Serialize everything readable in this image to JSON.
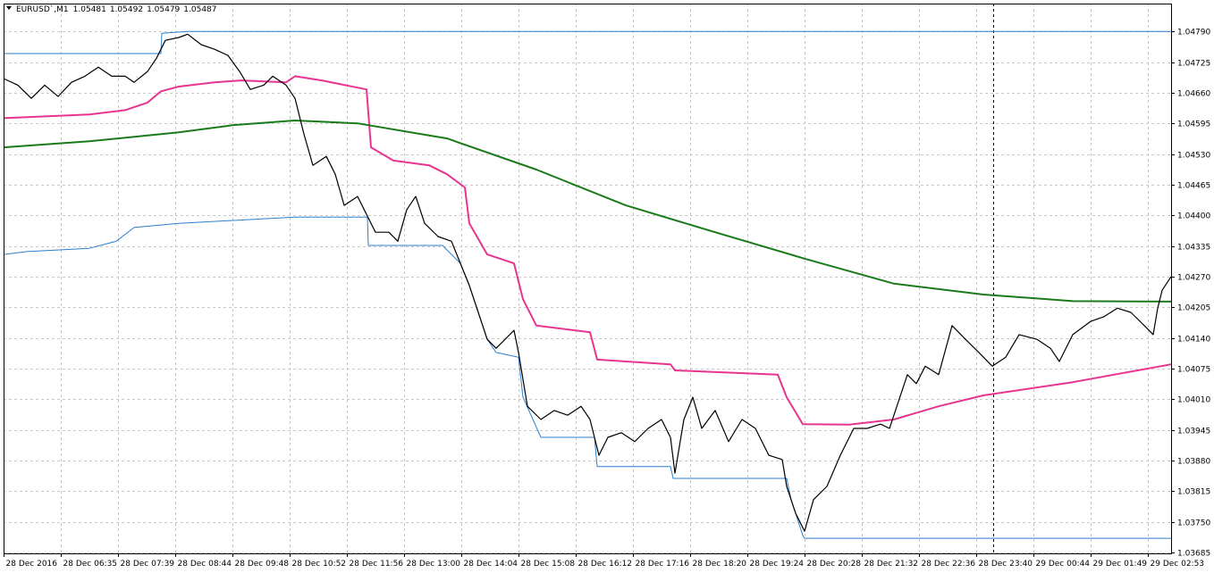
{
  "chart_data": {
    "type": "line",
    "title": "EURUSD`,M1",
    "ohlc": [
      1.05481,
      1.05492,
      1.05479,
      1.05487
    ],
    "xlim": [
      0,
      1306
    ],
    "xticks": [
      {
        "value": 0,
        "label": "28 Dec 2016"
      },
      {
        "value": 64,
        "label": "28 Dec 06:35"
      },
      {
        "value": 128,
        "label": "28 Dec 07:39"
      },
      {
        "value": 192,
        "label": "28 Dec 08:44"
      },
      {
        "value": 256,
        "label": "28 Dec 09:48"
      },
      {
        "value": 320,
        "label": "28 Dec 10:52"
      },
      {
        "value": 384,
        "label": "28 Dec 11:56"
      },
      {
        "value": 448,
        "label": "28 Dec 13:00"
      },
      {
        "value": 512,
        "label": "28 Dec 14:04"
      },
      {
        "value": 576,
        "label": "28 Dec 15:08"
      },
      {
        "value": 640,
        "label": "28 Dec 16:12"
      },
      {
        "value": 704,
        "label": "28 Dec 17:16"
      },
      {
        "value": 768,
        "label": "28 Dec 18:20"
      },
      {
        "value": 832,
        "label": "28 Dec 19:24"
      },
      {
        "value": 896,
        "label": "28 Dec 20:28"
      },
      {
        "value": 960,
        "label": "28 Dec 21:32"
      },
      {
        "value": 1024,
        "label": "28 Dec 22:36"
      },
      {
        "value": 1088,
        "label": "28 Dec 23:40"
      },
      {
        "value": 1152,
        "label": "29 Dec 00:44"
      },
      {
        "value": 1216,
        "label": "29 Dec 01:49"
      },
      {
        "value": 1280,
        "label": "29 Dec 02:53"
      }
    ],
    "ylim": [
      1.03683,
      1.04849
    ],
    "yticks": [
      {
        "value": 1.0479,
        "label": "1.04790"
      },
      1.04725,
      {
        "value": 1.0466,
        "label": "1.04660"
      },
      1.04595,
      {
        "value": 1.0453,
        "label": "1.04530"
      },
      1.04465,
      {
        "value": 1.044,
        "label": "1.04400"
      },
      1.04335,
      {
        "value": 1.0427,
        "label": "1.04270"
      },
      1.04205,
      {
        "value": 1.0414,
        "label": "1.04140"
      },
      1.04075,
      {
        "value": 1.0401,
        "label": "1.04010"
      },
      1.03945,
      {
        "value": 1.0388,
        "label": "1.03880"
      },
      1.03815,
      {
        "value": 1.0375,
        "label": "1.03750"
      },
      1.03685
    ],
    "grid": true,
    "series": [
      {
        "color": "#2b7fd0",
        "x": [
          0,
          176,
          177,
          206,
          1306
        ],
        "values": [
          1.04743,
          1.04743,
          1.04786,
          1.0479,
          1.0479
        ]
      },
      {
        "color": "#2b7fd0",
        "x": [
          0,
          26,
          96,
          126,
          146,
          196,
          326,
          407,
          408,
          491,
          501,
          511,
          521,
          531,
          541,
          551,
          576,
          581,
          601,
          661,
          664,
          746,
          749,
          876,
          881,
          894,
          896,
          1306
        ],
        "values": [
          1.04317,
          1.04323,
          1.0433,
          1.04345,
          1.04374,
          1.04383,
          1.04396,
          1.04396,
          1.04336,
          1.04336,
          1.04317,
          1.04298,
          1.04251,
          1.04194,
          1.04137,
          1.04109,
          1.04099,
          1.04014,
          1.03929,
          1.03929,
          1.03867,
          1.03867,
          1.03842,
          1.03842,
          1.03797,
          1.03721,
          1.03715,
          1.03715
        ]
      },
      {
        "color": "#e8348f",
        "x": [
          0,
          96,
          136,
          161,
          176,
          196,
          236,
          266,
          316,
          326,
          356,
          406,
          411,
          436,
          476,
          496,
          516,
          521,
          541,
          571,
          581,
          596,
          656,
          664,
          746,
          751,
          866,
          876,
          894,
          946,
          996,
          1046,
          1096,
          1196,
          1306
        ],
        "values": [
          1.04606,
          1.04614,
          1.04623,
          1.04639,
          1.04663,
          1.04673,
          1.04682,
          1.04686,
          1.04682,
          1.04695,
          1.04686,
          1.04667,
          1.04544,
          1.04516,
          1.04506,
          1.04487,
          1.04459,
          1.04383,
          1.04317,
          1.04298,
          1.04222,
          1.04166,
          1.04152,
          1.04094,
          1.04084,
          1.04071,
          1.04062,
          1.04014,
          1.03957,
          1.03956,
          1.03967,
          1.03995,
          1.04018,
          1.04046,
          1.04084
        ]
      },
      {
        "color": "#1a7a1a",
        "x": [
          0,
          96,
          196,
          256,
          326,
          396,
          496,
          596,
          696,
          796,
          896,
          996,
          1096,
          1196,
          1306
        ],
        "values": [
          1.04544,
          1.04557,
          1.04576,
          1.04591,
          1.04601,
          1.04595,
          1.04563,
          1.04497,
          1.04421,
          1.04364,
          1.04308,
          1.04255,
          1.04232,
          1.04218,
          1.04217
        ]
      },
      {
        "color": "#000000",
        "x": [
          0,
          16,
          31,
          46,
          61,
          76,
          91,
          106,
          121,
          136,
          146,
          161,
          171,
          181,
          196,
          206,
          221,
          236,
          251,
          264,
          276,
          291,
          301,
          316,
          326,
          336,
          346,
          361,
          371,
          381,
          396,
          406,
          416,
          431,
          441,
          451,
          461,
          471,
          486,
          501,
          511,
          521,
          531,
          541,
          551,
          561,
          571,
          576,
          586,
          601,
          616,
          631,
          646,
          656,
          666,
          676,
          691,
          706,
          721,
          736,
          746,
          751,
          761,
          771,
          781,
          796,
          811,
          826,
          841,
          856,
          871,
          876,
          886,
          896,
          906,
          921,
          936,
          951,
          966,
          981,
          991,
          1001,
          1011,
          1021,
          1031,
          1046,
          1061,
          1076,
          1091,
          1106,
          1121,
          1136,
          1156,
          1171,
          1181,
          1196,
          1216,
          1231,
          1246,
          1261,
          1276,
          1286,
          1291,
          1296,
          1306
        ],
        "values": [
          1.0469,
          1.04676,
          1.04648,
          1.04676,
          1.04652,
          1.04682,
          1.04695,
          1.04714,
          1.04695,
          1.04695,
          1.04682,
          1.04705,
          1.04733,
          1.04771,
          1.04777,
          1.04784,
          1.04762,
          1.04752,
          1.04739,
          1.04705,
          1.04667,
          1.04676,
          1.04695,
          1.04676,
          1.04648,
          1.04572,
          1.04506,
          1.04525,
          1.04487,
          1.04421,
          1.0444,
          1.04402,
          1.04364,
          1.04364,
          1.04345,
          1.04412,
          1.0444,
          1.04383,
          1.04355,
          1.04345,
          1.04298,
          1.04251,
          1.04194,
          1.04137,
          1.04118,
          1.04137,
          1.04156,
          1.04109,
          1.03995,
          1.03967,
          1.03986,
          1.03976,
          1.03995,
          1.03967,
          1.03891,
          1.03929,
          1.03939,
          1.0392,
          1.03948,
          1.03967,
          1.03929,
          1.03853,
          1.03967,
          1.04014,
          1.03948,
          1.03986,
          1.0392,
          1.03967,
          1.03948,
          1.03891,
          1.03882,
          1.03825,
          1.03768,
          1.0373,
          1.03797,
          1.03825,
          1.03891,
          1.03948,
          1.03948,
          1.03957,
          1.03948,
          1.04005,
          1.04062,
          1.04043,
          1.0408,
          1.04062,
          1.04166,
          1.04137,
          1.04109,
          1.0408,
          1.04099,
          1.04147,
          1.04137,
          1.04118,
          1.0409,
          1.04147,
          1.04175,
          1.04185,
          1.04203,
          1.04194,
          1.04166,
          1.04147,
          1.04203,
          1.04241,
          1.0427
        ]
      }
    ]
  }
}
